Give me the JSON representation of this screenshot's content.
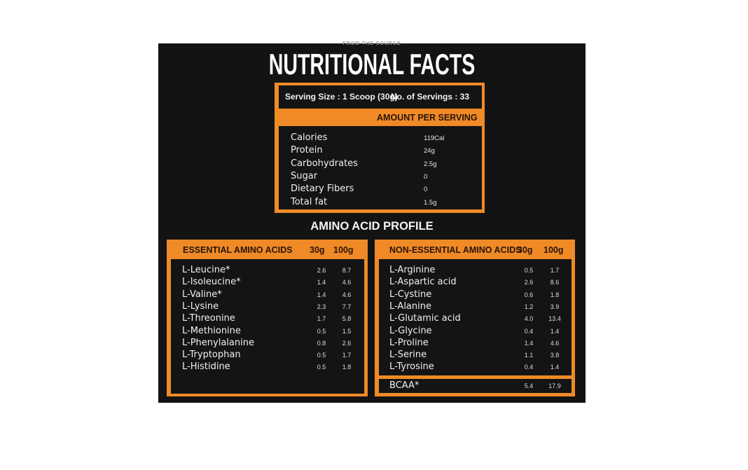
{
  "brand_tagline": "FROM THE SOURCE",
  "title": "NUTRITIONAL FACTS",
  "serving": {
    "size": "Serving Size : 1 Scoop (30g)",
    "count": "No. of Servings : 33"
  },
  "amount_header": "AMOUNT PER SERVING",
  "nutrients": [
    {
      "name": "Calories",
      "value": "119Cal"
    },
    {
      "name": "Protein",
      "value": "24g"
    },
    {
      "name": "Carbohydrates",
      "value": "2.5g"
    },
    {
      "name": "Sugar",
      "value": "0"
    },
    {
      "name": "Dietary Fibers",
      "value": "0"
    },
    {
      "name": "Total fat",
      "value": "1.5g"
    }
  ],
  "amino_title": "AMINO ACID PROFILE",
  "essential": {
    "header": "ESSENTIAL AMINO ACIDS",
    "col1": "30g",
    "col2": "100g",
    "rows": [
      {
        "name": "L-Leucine*",
        "g30": "2.6",
        "g100": "8.7"
      },
      {
        "name": "L-Isoleucine*",
        "g30": "1.4",
        "g100": "4.6"
      },
      {
        "name": "L-Valine*",
        "g30": "1.4",
        "g100": "4.6"
      },
      {
        "name": "L-Lysine",
        "g30": "2.3",
        "g100": "7.7"
      },
      {
        "name": "L-Threonine",
        "g30": "1.7",
        "g100": "5.8"
      },
      {
        "name": "L-Methionine",
        "g30": "0.5",
        "g100": "1.5"
      },
      {
        "name": "L-Phenylalanine",
        "g30": "0.8",
        "g100": "2.6"
      },
      {
        "name": "L-Tryptophan",
        "g30": "0.5",
        "g100": "1.7"
      },
      {
        "name": "L-Histidine",
        "g30": "0.5",
        "g100": "1.8"
      }
    ]
  },
  "non_essential": {
    "header": "NON-ESSENTIAL AMINO ACIDS",
    "col1": "30g",
    "col2": "100g",
    "rows": [
      {
        "name": "L-Arginine",
        "g30": "0.5",
        "g100": "1.7"
      },
      {
        "name": "L-Aspartic acid",
        "g30": "2.6",
        "g100": "8.6"
      },
      {
        "name": "L-Cystine",
        "g30": "0.6",
        "g100": "1.8"
      },
      {
        "name": "L-Alanine",
        "g30": "1.2",
        "g100": "3.9"
      },
      {
        "name": "L-Glutamic acid",
        "g30": "4.0",
        "g100": "13.4"
      },
      {
        "name": "L-Glycine",
        "g30": "0.4",
        "g100": "1.4"
      },
      {
        "name": "L-Proline",
        "g30": "1.4",
        "g100": "4.6"
      },
      {
        "name": "L-Serine",
        "g30": "1.1",
        "g100": "3.8"
      },
      {
        "name": "L-Tyrosine",
        "g30": "0.4",
        "g100": "1.4"
      }
    ],
    "bcaa": {
      "name": "BCAA*",
      "g30": "5.4",
      "g100": "17.9"
    }
  },
  "colors": {
    "accent": "#ef8a27",
    "background": "#131313"
  }
}
